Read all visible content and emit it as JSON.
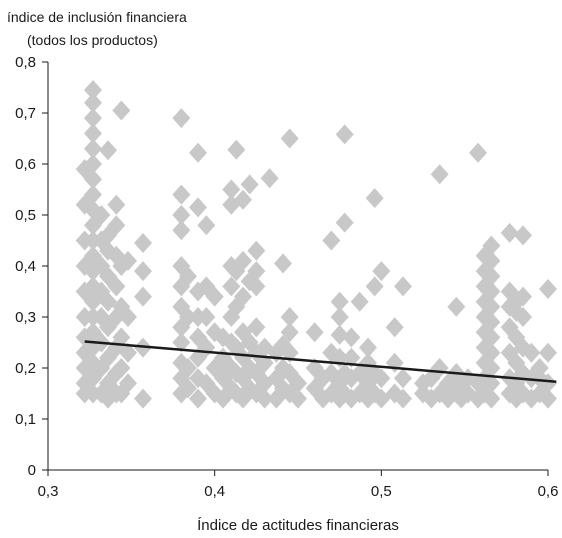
{
  "chart_data": {
    "type": "scatter",
    "ylabel_lines": [
      "índice de inclusión financiera",
      "(todos los productos)"
    ],
    "xlabel": "Índice de actitudes financieras",
    "xlim": [
      0.3,
      0.6
    ],
    "ylim": [
      0,
      0.8
    ],
    "x_ticks": [
      "0,3",
      "0,4",
      "0,5",
      "0,6"
    ],
    "y_ticks": [
      "0",
      "0,1",
      "0,2",
      "0,3",
      "0,4",
      "0,5",
      "0,6",
      "0,7",
      "0,8"
    ],
    "marker": "diamond",
    "marker_color": "#c8c8c8",
    "line_color": "#1a1a1a",
    "trendline": {
      "x": [
        0.322,
        0.605
      ],
      "y": [
        0.252,
        0.173
      ]
    },
    "points": [
      [
        0.322,
        0.15
      ],
      [
        0.322,
        0.17
      ],
      [
        0.322,
        0.2
      ],
      [
        0.322,
        0.23
      ],
      [
        0.322,
        0.26
      ],
      [
        0.322,
        0.3
      ],
      [
        0.322,
        0.35
      ],
      [
        0.322,
        0.4
      ],
      [
        0.322,
        0.45
      ],
      [
        0.322,
        0.52
      ],
      [
        0.322,
        0.59
      ],
      [
        0.327,
        0.15
      ],
      [
        0.327,
        0.18
      ],
      [
        0.327,
        0.21
      ],
      [
        0.327,
        0.24
      ],
      [
        0.327,
        0.27
      ],
      [
        0.327,
        0.3
      ],
      [
        0.327,
        0.33
      ],
      [
        0.327,
        0.36
      ],
      [
        0.327,
        0.39
      ],
      [
        0.327,
        0.42
      ],
      [
        0.327,
        0.45
      ],
      [
        0.327,
        0.48
      ],
      [
        0.327,
        0.51
      ],
      [
        0.327,
        0.54
      ],
      [
        0.327,
        0.57
      ],
      [
        0.327,
        0.6
      ],
      [
        0.327,
        0.63
      ],
      [
        0.327,
        0.66
      ],
      [
        0.327,
        0.69
      ],
      [
        0.327,
        0.72
      ],
      [
        0.327,
        0.745
      ],
      [
        0.332,
        0.15
      ],
      [
        0.332,
        0.2
      ],
      [
        0.332,
        0.25
      ],
      [
        0.332,
        0.3
      ],
      [
        0.332,
        0.35
      ],
      [
        0.332,
        0.4
      ],
      [
        0.332,
        0.45
      ],
      [
        0.332,
        0.5
      ],
      [
        0.336,
        0.14
      ],
      [
        0.336,
        0.17
      ],
      [
        0.336,
        0.22
      ],
      [
        0.336,
        0.28
      ],
      [
        0.336,
        0.33
      ],
      [
        0.336,
        0.38
      ],
      [
        0.336,
        0.43
      ],
      [
        0.336,
        0.46
      ],
      [
        0.336,
        0.627
      ],
      [
        0.341,
        0.15
      ],
      [
        0.341,
        0.19
      ],
      [
        0.341,
        0.24
      ],
      [
        0.341,
        0.3
      ],
      [
        0.341,
        0.36
      ],
      [
        0.341,
        0.42
      ],
      [
        0.341,
        0.48
      ],
      [
        0.341,
        0.52
      ],
      [
        0.344,
        0.15
      ],
      [
        0.344,
        0.2
      ],
      [
        0.344,
        0.26
      ],
      [
        0.344,
        0.32
      ],
      [
        0.344,
        0.4
      ],
      [
        0.344,
        0.705
      ],
      [
        0.348,
        0.17
      ],
      [
        0.348,
        0.23
      ],
      [
        0.348,
        0.3
      ],
      [
        0.348,
        0.41
      ],
      [
        0.357,
        0.14
      ],
      [
        0.357,
        0.24
      ],
      [
        0.357,
        0.34
      ],
      [
        0.357,
        0.39
      ],
      [
        0.357,
        0.445
      ],
      [
        0.38,
        0.15
      ],
      [
        0.38,
        0.18
      ],
      [
        0.38,
        0.21
      ],
      [
        0.38,
        0.25
      ],
      [
        0.38,
        0.28
      ],
      [
        0.38,
        0.32
      ],
      [
        0.38,
        0.36
      ],
      [
        0.38,
        0.4
      ],
      [
        0.38,
        0.47
      ],
      [
        0.38,
        0.5
      ],
      [
        0.38,
        0.54
      ],
      [
        0.38,
        0.69
      ],
      [
        0.384,
        0.16
      ],
      [
        0.384,
        0.2
      ],
      [
        0.384,
        0.3
      ],
      [
        0.384,
        0.38
      ],
      [
        0.39,
        0.14
      ],
      [
        0.39,
        0.18
      ],
      [
        0.39,
        0.22
      ],
      [
        0.39,
        0.26
      ],
      [
        0.39,
        0.3
      ],
      [
        0.39,
        0.35
      ],
      [
        0.39,
        0.515
      ],
      [
        0.39,
        0.622
      ],
      [
        0.395,
        0.17
      ],
      [
        0.395,
        0.24
      ],
      [
        0.395,
        0.3
      ],
      [
        0.395,
        0.36
      ],
      [
        0.395,
        0.48
      ],
      [
        0.4,
        0.15
      ],
      [
        0.4,
        0.2
      ],
      [
        0.4,
        0.27
      ],
      [
        0.4,
        0.34
      ],
      [
        0.405,
        0.14
      ],
      [
        0.405,
        0.18
      ],
      [
        0.405,
        0.22
      ],
      [
        0.405,
        0.26
      ],
      [
        0.41,
        0.16
      ],
      [
        0.41,
        0.2
      ],
      [
        0.41,
        0.25
      ],
      [
        0.41,
        0.3
      ],
      [
        0.41,
        0.36
      ],
      [
        0.41,
        0.4
      ],
      [
        0.41,
        0.52
      ],
      [
        0.41,
        0.55
      ],
      [
        0.413,
        0.15
      ],
      [
        0.413,
        0.19
      ],
      [
        0.413,
        0.24
      ],
      [
        0.413,
        0.32
      ],
      [
        0.413,
        0.39
      ],
      [
        0.413,
        0.628
      ],
      [
        0.417,
        0.14
      ],
      [
        0.417,
        0.18
      ],
      [
        0.417,
        0.22
      ],
      [
        0.417,
        0.27
      ],
      [
        0.417,
        0.34
      ],
      [
        0.417,
        0.41
      ],
      [
        0.417,
        0.53
      ],
      [
        0.421,
        0.16
      ],
      [
        0.421,
        0.2
      ],
      [
        0.421,
        0.25
      ],
      [
        0.421,
        0.37
      ],
      [
        0.421,
        0.56
      ],
      [
        0.425,
        0.15
      ],
      [
        0.425,
        0.19
      ],
      [
        0.425,
        0.23
      ],
      [
        0.425,
        0.28
      ],
      [
        0.425,
        0.36
      ],
      [
        0.425,
        0.39
      ],
      [
        0.425,
        0.43
      ],
      [
        0.43,
        0.14
      ],
      [
        0.43,
        0.17
      ],
      [
        0.43,
        0.21
      ],
      [
        0.43,
        0.24
      ],
      [
        0.433,
        0.572
      ],
      [
        0.437,
        0.14
      ],
      [
        0.437,
        0.18
      ],
      [
        0.437,
        0.23
      ],
      [
        0.441,
        0.16
      ],
      [
        0.441,
        0.2
      ],
      [
        0.441,
        0.245
      ],
      [
        0.441,
        0.405
      ],
      [
        0.445,
        0.15
      ],
      [
        0.445,
        0.19
      ],
      [
        0.445,
        0.23
      ],
      [
        0.445,
        0.27
      ],
      [
        0.445,
        0.3
      ],
      [
        0.445,
        0.65
      ],
      [
        0.45,
        0.14
      ],
      [
        0.45,
        0.17
      ],
      [
        0.46,
        0.16
      ],
      [
        0.46,
        0.2
      ],
      [
        0.46,
        0.27
      ],
      [
        0.465,
        0.14
      ],
      [
        0.465,
        0.18
      ],
      [
        0.47,
        0.15
      ],
      [
        0.47,
        0.19
      ],
      [
        0.47,
        0.23
      ],
      [
        0.47,
        0.45
      ],
      [
        0.475,
        0.14
      ],
      [
        0.475,
        0.17
      ],
      [
        0.475,
        0.22
      ],
      [
        0.475,
        0.265
      ],
      [
        0.475,
        0.3
      ],
      [
        0.475,
        0.33
      ],
      [
        0.478,
        0.15
      ],
      [
        0.478,
        0.19
      ],
      [
        0.478,
        0.485
      ],
      [
        0.478,
        0.658
      ],
      [
        0.482,
        0.14
      ],
      [
        0.482,
        0.18
      ],
      [
        0.482,
        0.22
      ],
      [
        0.482,
        0.26
      ],
      [
        0.487,
        0.15
      ],
      [
        0.487,
        0.19
      ],
      [
        0.487,
        0.33
      ],
      [
        0.492,
        0.14
      ],
      [
        0.492,
        0.17
      ],
      [
        0.492,
        0.21
      ],
      [
        0.492,
        0.24
      ],
      [
        0.496,
        0.15
      ],
      [
        0.496,
        0.19
      ],
      [
        0.496,
        0.36
      ],
      [
        0.496,
        0.533
      ],
      [
        0.5,
        0.14
      ],
      [
        0.5,
        0.18
      ],
      [
        0.5,
        0.39
      ],
      [
        0.508,
        0.15
      ],
      [
        0.508,
        0.21
      ],
      [
        0.508,
        0.28
      ],
      [
        0.513,
        0.14
      ],
      [
        0.513,
        0.18
      ],
      [
        0.513,
        0.36
      ],
      [
        0.525,
        0.15
      ],
      [
        0.525,
        0.17
      ],
      [
        0.53,
        0.14
      ],
      [
        0.53,
        0.18
      ],
      [
        0.535,
        0.15
      ],
      [
        0.535,
        0.2
      ],
      [
        0.535,
        0.58
      ],
      [
        0.54,
        0.14
      ],
      [
        0.54,
        0.17
      ],
      [
        0.545,
        0.15
      ],
      [
        0.545,
        0.19
      ],
      [
        0.545,
        0.32
      ],
      [
        0.548,
        0.14
      ],
      [
        0.548,
        0.17
      ],
      [
        0.552,
        0.15
      ],
      [
        0.552,
        0.18
      ],
      [
        0.558,
        0.14
      ],
      [
        0.558,
        0.17
      ],
      [
        0.558,
        0.622
      ],
      [
        0.562,
        0.15
      ],
      [
        0.562,
        0.18
      ],
      [
        0.562,
        0.21
      ],
      [
        0.562,
        0.24
      ],
      [
        0.562,
        0.27
      ],
      [
        0.562,
        0.3
      ],
      [
        0.562,
        0.33
      ],
      [
        0.562,
        0.36
      ],
      [
        0.562,
        0.39
      ],
      [
        0.562,
        0.42
      ],
      [
        0.566,
        0.14
      ],
      [
        0.566,
        0.17
      ],
      [
        0.566,
        0.2
      ],
      [
        0.566,
        0.23
      ],
      [
        0.566,
        0.26
      ],
      [
        0.566,
        0.29
      ],
      [
        0.566,
        0.32
      ],
      [
        0.566,
        0.35
      ],
      [
        0.566,
        0.38
      ],
      [
        0.566,
        0.41
      ],
      [
        0.566,
        0.44
      ],
      [
        0.577,
        0.15
      ],
      [
        0.577,
        0.18
      ],
      [
        0.577,
        0.23
      ],
      [
        0.577,
        0.28
      ],
      [
        0.577,
        0.32
      ],
      [
        0.577,
        0.35
      ],
      [
        0.577,
        0.465
      ],
      [
        0.581,
        0.14
      ],
      [
        0.581,
        0.17
      ],
      [
        0.581,
        0.21
      ],
      [
        0.581,
        0.26
      ],
      [
        0.581,
        0.31
      ],
      [
        0.581,
        0.33
      ],
      [
        0.585,
        0.15
      ],
      [
        0.585,
        0.19
      ],
      [
        0.585,
        0.24
      ],
      [
        0.585,
        0.3
      ],
      [
        0.585,
        0.34
      ],
      [
        0.585,
        0.46
      ],
      [
        0.59,
        0.14
      ],
      [
        0.59,
        0.18
      ],
      [
        0.59,
        0.23
      ],
      [
        0.595,
        0.15
      ],
      [
        0.595,
        0.18
      ],
      [
        0.595,
        0.2
      ],
      [
        0.6,
        0.14
      ],
      [
        0.6,
        0.17
      ],
      [
        0.6,
        0.23
      ],
      [
        0.6,
        0.355
      ]
    ]
  }
}
